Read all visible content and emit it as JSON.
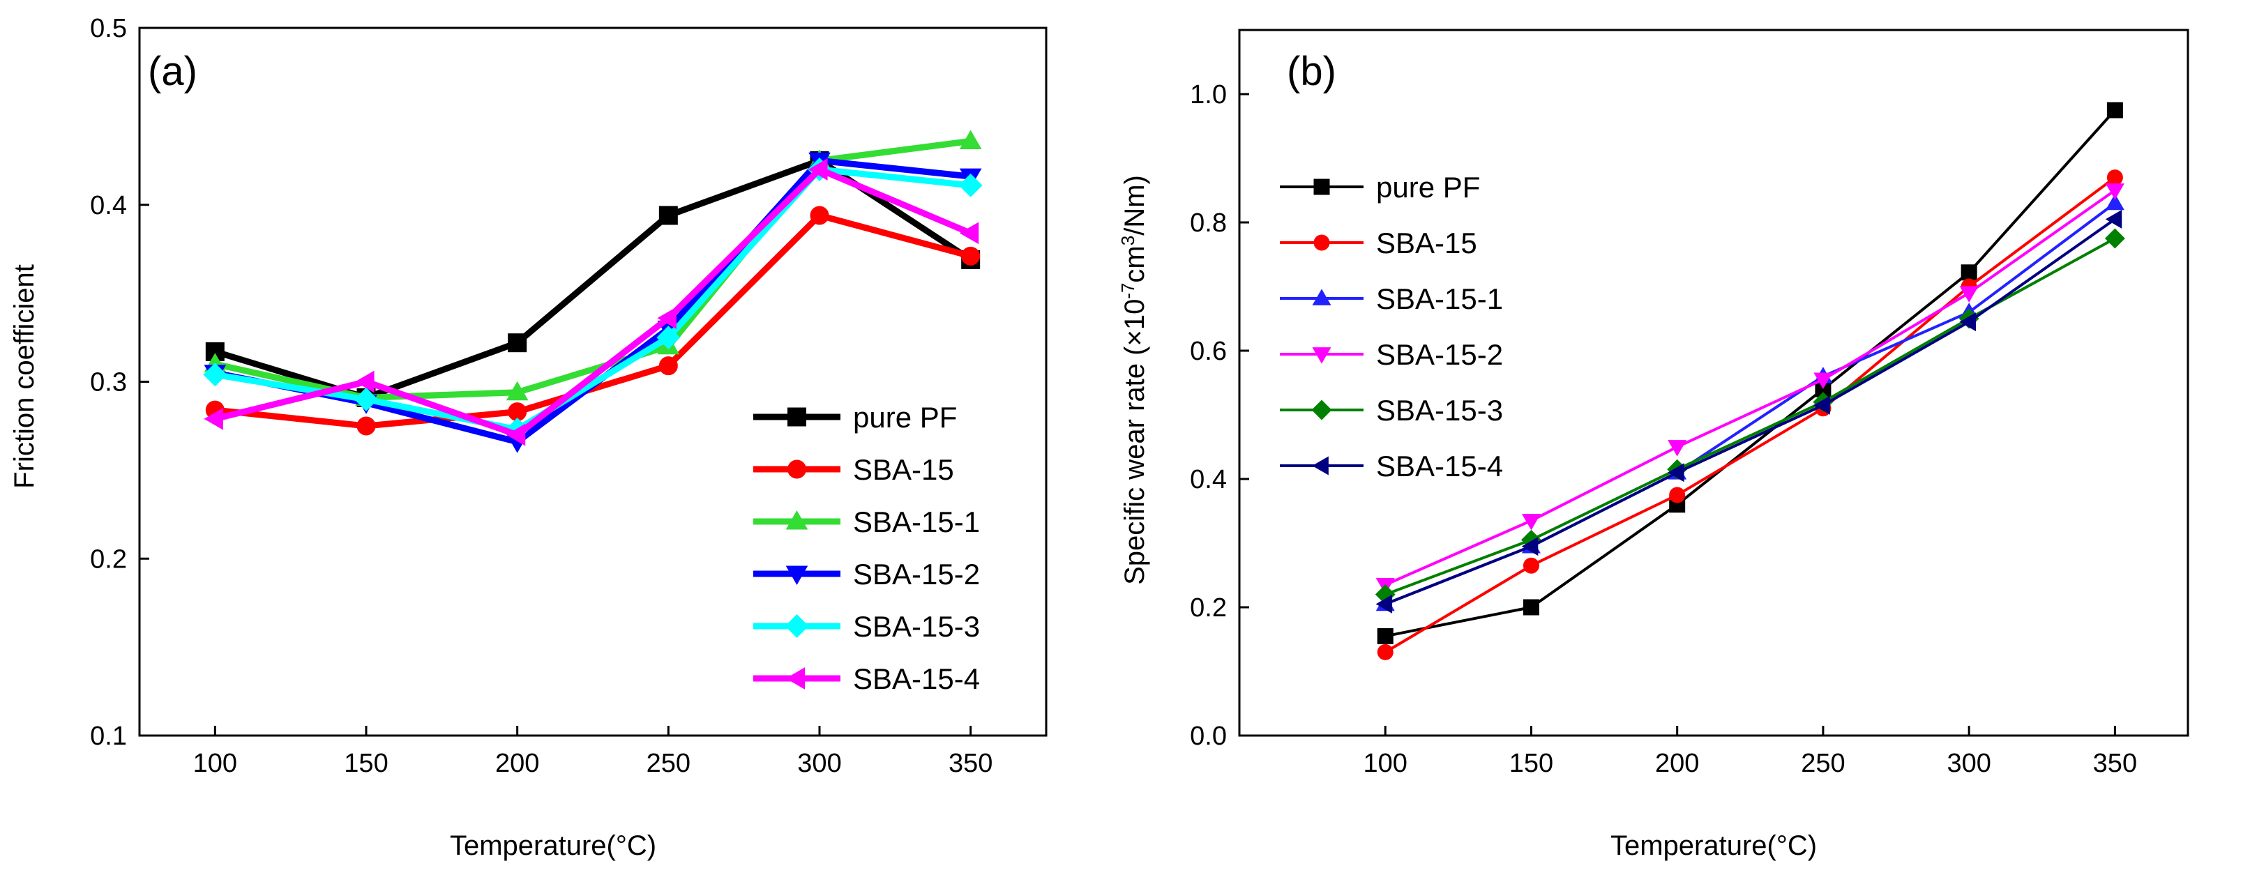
{
  "chart_data": [
    {
      "type": "line",
      "panel_label": "(a)",
      "xlabel": "Temperature(°C)",
      "ylabel": "Friction coefficient",
      "x": [
        100,
        150,
        200,
        250,
        300,
        350
      ],
      "x_ticks": [
        "100",
        "150",
        "200",
        "250",
        "300",
        "350"
      ],
      "xlim": [
        75,
        375
      ],
      "y_ticks": [
        "0.1",
        "0.2",
        "0.3",
        "0.4",
        "0.5"
      ],
      "ylim": [
        0.1,
        0.5
      ],
      "legend_position": "bottom-right",
      "series": [
        {
          "name": "pure PF",
          "color": "#000000",
          "marker": "square",
          "values": [
            0.317,
            0.291,
            0.322,
            0.394,
            0.425,
            0.369
          ]
        },
        {
          "name": "SBA-15",
          "color": "#ff0000",
          "marker": "circle",
          "values": [
            0.284,
            0.275,
            0.283,
            0.309,
            0.394,
            0.371
          ]
        },
        {
          "name": "SBA-15-1",
          "color": "#33dd33",
          "marker": "triangle-up",
          "values": [
            0.31,
            0.291,
            0.294,
            0.32,
            0.425,
            0.436
          ]
        },
        {
          "name": "SBA-15-2",
          "color": "#0000ff",
          "marker": "triangle-down",
          "values": [
            0.305,
            0.288,
            0.266,
            0.33,
            0.425,
            0.416
          ]
        },
        {
          "name": "SBA-15-3",
          "color": "#00ffff",
          "marker": "diamond",
          "values": [
            0.304,
            0.29,
            0.273,
            0.325,
            0.42,
            0.411
          ]
        },
        {
          "name": "SBA-15-4",
          "color": "#ff00ff",
          "marker": "triangle-left",
          "values": [
            0.279,
            0.3,
            0.27,
            0.336,
            0.42,
            0.384
          ]
        }
      ]
    },
    {
      "type": "line",
      "panel_label": "(b)",
      "xlabel": "Temperature(°C)",
      "ylabel": "Specific wear rate (×10",
      "ylabel_sup1": "-7",
      "ylabel_mid": "cm",
      "ylabel_sup2": "3",
      "ylabel_end": "/Nm)",
      "x": [
        100,
        150,
        200,
        250,
        300,
        350
      ],
      "x_ticks": [
        "100",
        "150",
        "200",
        "250",
        "300",
        "350"
      ],
      "xlim": [
        50,
        375
      ],
      "y_ticks": [
        "0.0",
        "0.2",
        "0.4",
        "0.6",
        "0.8",
        "1.0"
      ],
      "ylim": [
        0.0,
        1.1
      ],
      "legend_position": "top-left",
      "series": [
        {
          "name": "pure PF",
          "color": "#000000",
          "marker": "square",
          "values": [
            0.155,
            0.2,
            0.36,
            0.54,
            0.722,
            0.975
          ]
        },
        {
          "name": "SBA-15",
          "color": "#ff0000",
          "marker": "circle",
          "values": [
            0.13,
            0.265,
            0.375,
            0.51,
            0.7,
            0.87
          ]
        },
        {
          "name": "SBA-15-1",
          "color": "#2222ff",
          "marker": "triangle-up",
          "values": [
            0.205,
            0.295,
            0.41,
            0.56,
            0.66,
            0.83
          ]
        },
        {
          "name": "SBA-15-2",
          "color": "#ff00ff",
          "marker": "triangle-down",
          "values": [
            0.235,
            0.335,
            0.45,
            0.555,
            0.69,
            0.85
          ]
        },
        {
          "name": "SBA-15-3",
          "color": "#008000",
          "marker": "diamond",
          "values": [
            0.22,
            0.305,
            0.415,
            0.52,
            0.65,
            0.775
          ]
        },
        {
          "name": "SBA-15-4",
          "color": "#000080",
          "marker": "triangle-left",
          "values": [
            0.205,
            0.295,
            0.41,
            0.515,
            0.645,
            0.805
          ]
        }
      ]
    }
  ]
}
